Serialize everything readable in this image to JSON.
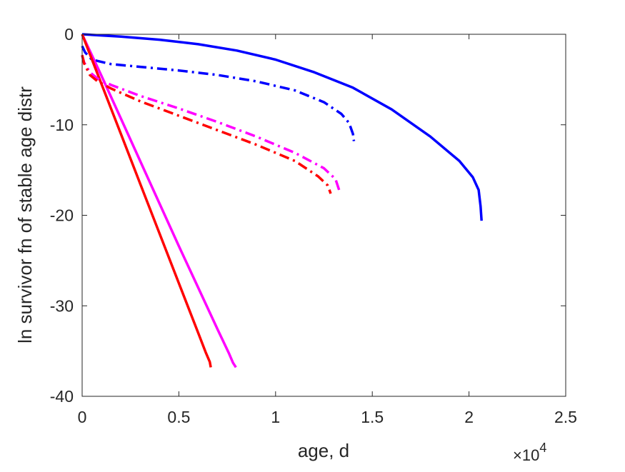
{
  "chart_data": {
    "type": "line",
    "title": "",
    "xlabel": "age, d",
    "ylabel": "ln survivor fn of stable age distr",
    "x_exponent_label": "×10",
    "x_exponent_power": "4",
    "xlim": [
      0,
      25000
    ],
    "ylim": [
      -40,
      0
    ],
    "x_ticks": [
      0,
      5000,
      10000,
      15000,
      20000,
      25000
    ],
    "x_tick_labels": [
      "0",
      "0.5",
      "1",
      "1.5",
      "2",
      "2.5"
    ],
    "y_ticks": [
      0,
      -10,
      -20,
      -30,
      -40
    ],
    "y_tick_labels": [
      "0",
      "-10",
      "-20",
      "-30",
      "-40"
    ],
    "grid": false,
    "series": [
      {
        "color": "#0000ff",
        "style": "solid",
        "x": [
          0,
          2000,
          4000,
          6000,
          8000,
          10000,
          12000,
          14000,
          16000,
          18000,
          19500,
          20200,
          20500,
          20600,
          20650
        ],
        "y": [
          0,
          -0.25,
          -0.6,
          -1.1,
          -1.8,
          -2.8,
          -4.2,
          -5.9,
          -8.3,
          -11.3,
          -14.0,
          -15.8,
          -17.2,
          -19.0,
          -20.6
        ]
      },
      {
        "color": "#0000ff",
        "style": "dashdot",
        "x": [
          0,
          150,
          500,
          1500,
          3000,
          5000,
          7000,
          9000,
          11000,
          12500,
          13400,
          13800,
          14000,
          14050
        ],
        "y": [
          -1.3,
          -2.0,
          -2.8,
          -3.3,
          -3.6,
          -4.0,
          -4.5,
          -5.2,
          -6.2,
          -7.5,
          -8.8,
          -9.8,
          -11.0,
          -11.8
        ]
      },
      {
        "color": "#ff00ff",
        "style": "solid",
        "x": [
          0,
          1000,
          2000,
          3000,
          4000,
          5000,
          6000,
          7000,
          7600,
          7800,
          7950
        ],
        "y": [
          0,
          -4.6,
          -9.3,
          -14.0,
          -18.7,
          -23.4,
          -28.0,
          -32.6,
          -35.3,
          -36.3,
          -36.8
        ]
      },
      {
        "color": "#ff0000",
        "style": "solid",
        "x": [
          0,
          1000,
          2000,
          3000,
          4000,
          5000,
          6000,
          6400,
          6600,
          6650
        ],
        "y": [
          0,
          -5.5,
          -11.0,
          -16.5,
          -22.0,
          -27.5,
          -33.0,
          -35.2,
          -36.2,
          -36.8
        ]
      },
      {
        "color": "#ff00ff",
        "style": "dashdot",
        "x": [
          0,
          100,
          400,
          800,
          1500,
          3000,
          5000,
          7000,
          9000,
          11000,
          12500,
          13100,
          13300
        ],
        "y": [
          -2.3,
          -3.1,
          -4.2,
          -4.9,
          -5.6,
          -6.8,
          -8.2,
          -9.7,
          -11.3,
          -13.1,
          -14.8,
          -16.0,
          -17.3
        ]
      },
      {
        "color": "#ff0000",
        "style": "dashdot",
        "x": [
          0,
          100,
          400,
          800,
          1500,
          3000,
          5000,
          7000,
          9000,
          11000,
          12200,
          12700,
          12850
        ],
        "y": [
          -2.3,
          -3.2,
          -4.5,
          -5.2,
          -6.0,
          -7.4,
          -9.0,
          -10.6,
          -12.2,
          -14.0,
          -15.7,
          -16.7,
          -17.6
        ]
      }
    ]
  }
}
